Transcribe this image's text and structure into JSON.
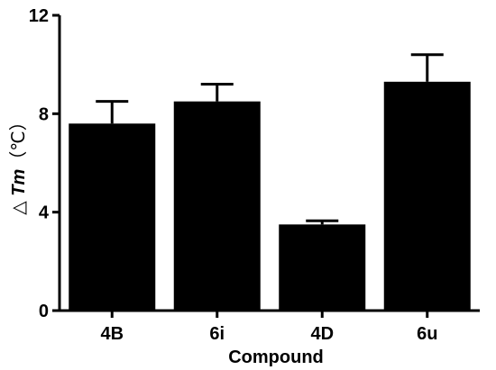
{
  "chart_data": {
    "type": "bar",
    "title": "",
    "xlabel": "Compound",
    "ylabel": {
      "prefix": "△ ",
      "italic": "Tm",
      "suffix": "（℃）"
    },
    "categories": [
      "4B",
      "6i",
      "4D",
      "6u"
    ],
    "values": [
      7.6,
      8.5,
      3.5,
      9.3
    ],
    "errors": [
      0.9,
      0.7,
      0.15,
      1.1
    ],
    "ylim": [
      0,
      12
    ],
    "yticks": [
      {
        "value": 0,
        "label": "0"
      },
      {
        "value": 4,
        "label": "4"
      },
      {
        "value": 8,
        "label": "8"
      },
      {
        "value": 12,
        "label": "12"
      }
    ],
    "grid": false,
    "bar_color": "#000000"
  }
}
